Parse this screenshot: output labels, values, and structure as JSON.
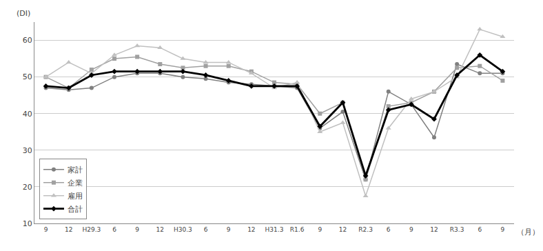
{
  "chart_data": {
    "type": "line",
    "xlabel": "（月）",
    "ylabel": "(DI)",
    "categories": [
      "9",
      "12",
      "H29.3",
      "6",
      "9",
      "12",
      "H30.3",
      "6",
      "9",
      "12",
      "H31.3",
      "R1.6",
      "9",
      "12",
      "R2.3",
      "6",
      "9",
      "12",
      "R3.3",
      "6",
      "9"
    ],
    "series": [
      {
        "name": "家計",
        "color": "#808080",
        "marker": "circle",
        "values": [
          47.0,
          46.5,
          47.0,
          50.0,
          51.0,
          51.0,
          50.0,
          49.5,
          48.5,
          48.0,
          47.5,
          47.0,
          36.0,
          40.5,
          22.0,
          46.0,
          42.5,
          33.5,
          53.5,
          51.0,
          51.0
        ]
      },
      {
        "name": "企業",
        "color": "#a0a0a0",
        "marker": "square",
        "values": [
          50.0,
          47.0,
          52.0,
          55.0,
          55.5,
          53.5,
          52.5,
          53.0,
          53.0,
          51.5,
          48.5,
          48.0,
          40.0,
          43.0,
          22.0,
          42.0,
          43.0,
          46.0,
          52.5,
          53.0,
          49.0
        ]
      },
      {
        "name": "雇用",
        "color": "#c0c0c0",
        "marker": "triangle",
        "values": [
          50.0,
          54.0,
          51.0,
          56.0,
          58.5,
          58.0,
          55.0,
          54.0,
          54.0,
          51.0,
          47.0,
          48.5,
          35.0,
          37.5,
          17.5,
          36.0,
          44.0,
          46.0,
          50.0,
          63.0,
          61.0
        ]
      },
      {
        "name": "合計",
        "color": "#000000",
        "marker": "diamond",
        "values": [
          47.5,
          47.0,
          50.5,
          51.5,
          51.5,
          51.5,
          51.5,
          50.5,
          49.0,
          47.5,
          47.5,
          47.5,
          36.5,
          43.0,
          23.0,
          41.0,
          42.5,
          38.5,
          50.5,
          56.0,
          51.5
        ]
      }
    ],
    "ylim": [
      10,
      65
    ],
    "yticks": [
      10,
      20,
      30,
      40,
      50,
      60
    ],
    "grid": true,
    "legend": "lower left"
  }
}
